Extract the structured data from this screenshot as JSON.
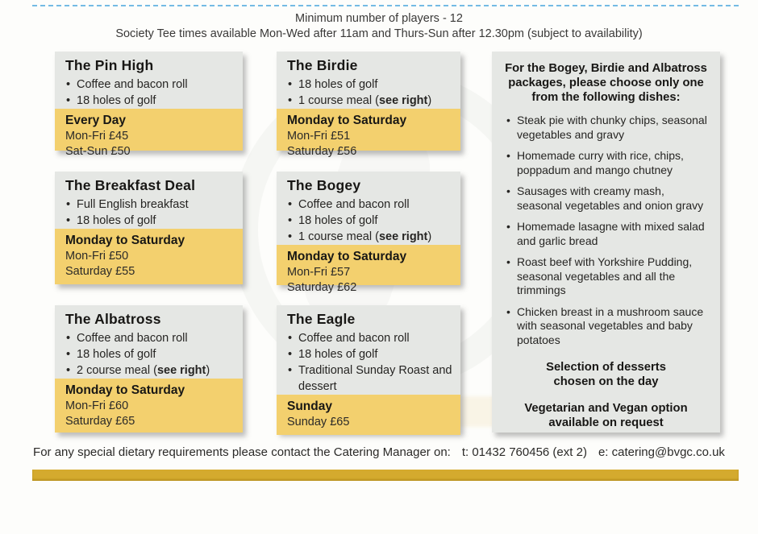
{
  "colors": {
    "card_gray": "#e5e7e4",
    "card_yellow": "#f3d06e",
    "gold_bar": "#d4aa2e",
    "dashed_rule_blue": "#74bbe4"
  },
  "header": {
    "line1": "Minimum number of players - 12",
    "line2": "Society Tee times available Mon-Wed after 11am and Thurs-Sun after 12.30pm (subject to availability)"
  },
  "cards": [
    {
      "title": "The Pin High",
      "bullets": [
        {
          "pre": "Coffee and bacon roll"
        },
        {
          "pre": "18 holes of golf"
        }
      ],
      "schedule": "Every Day",
      "prices": [
        "Mon-Fri £45",
        "Sat-Sun £50"
      ]
    },
    {
      "title": "The Birdie",
      "bullets": [
        {
          "pre": "18 holes of golf"
        },
        {
          "pre": "1 course meal (",
          "bold": "see right",
          "post": ")"
        }
      ],
      "schedule": "Monday to Saturday",
      "prices": [
        "Mon-Fri £51",
        "Saturday £56"
      ]
    },
    {
      "title": "The Breakfast Deal",
      "bullets": [
        {
          "pre": "Full English breakfast"
        },
        {
          "pre": "18 holes of golf"
        }
      ],
      "schedule": "Monday to Saturday",
      "prices": [
        "Mon-Fri £50",
        "Saturday £55"
      ]
    },
    {
      "title": "The Bogey",
      "bullets": [
        {
          "pre": "Coffee and bacon roll"
        },
        {
          "pre": "18 holes of golf"
        },
        {
          "pre": "1 course meal (",
          "bold": "see right",
          "post": ")"
        }
      ],
      "schedule": "Monday to Saturday",
      "prices": [
        "Mon-Fri £57",
        "Saturday £62"
      ]
    },
    {
      "title": "The Albatross",
      "bullets": [
        {
          "pre": "Coffee and bacon roll"
        },
        {
          "pre": "18 holes of golf"
        },
        {
          "pre": "2 course meal (",
          "bold": "see right",
          "post": ")"
        }
      ],
      "schedule": "Monday to Saturday",
      "prices": [
        "Mon-Fri £60",
        "Saturday £65"
      ]
    },
    {
      "title": "The Eagle",
      "bullets": [
        {
          "pre": "Coffee and bacon roll"
        },
        {
          "pre": "18 holes of golf"
        },
        {
          "pre": "Traditional Sunday Roast and dessert"
        }
      ],
      "schedule": "Sunday",
      "prices": [
        "Sunday £65"
      ]
    }
  ],
  "right_panel": {
    "heading": "For the Bogey, Birdie and Albatross packages, please choose only one from the following dishes:",
    "dishes": [
      "Steak pie with chunky chips, seasonal vegetables and gravy",
      "Homemade curry with rice, chips, poppadum and mango chutney",
      "Sausages with creamy mash, seasonal vegetables and onion gravy",
      "Homemade lasagne with mixed salad and garlic bread",
      "Roast beef with Yorkshire Pudding, seasonal vegetables and all the trimmings",
      "Chicken breast in a mushroom sauce with seasonal vegetables and baby potatoes"
    ],
    "desserts_note_line1": "Selection of desserts",
    "desserts_note_line2": "chosen on the day",
    "vegetarian_note_line1": "Vegetarian and Vegan option",
    "vegetarian_note_line2": "available on request"
  },
  "footer": {
    "text": "For any special dietary requirements please contact the Catering Manager on:",
    "phone": "t: 01432 760456 (ext 2)",
    "email": "e: catering@bvgc.co.uk"
  }
}
